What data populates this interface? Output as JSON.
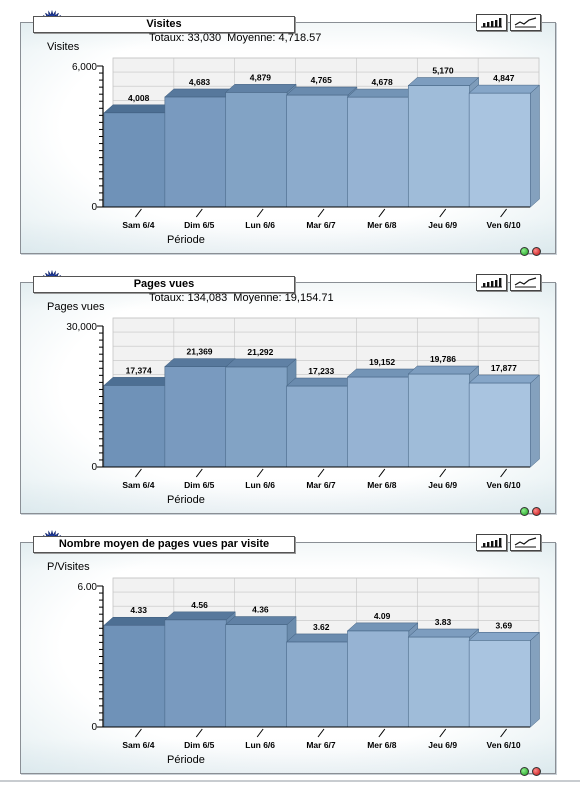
{
  "charts": [
    {
      "title": "Visites",
      "totals_label": "Totaux: 33,030",
      "average_label": "Moyenne: 4,718.57",
      "xlabel": "Période"
    },
    {
      "title": "Pages vues",
      "totals_label": "Totaux: 134,083",
      "average_label": "Moyenne: 19,154.71",
      "xlabel": "Période"
    },
    {
      "title": "Nombre moyen de pages vues par visite",
      "totals_label": "",
      "average_label": "",
      "xlabel": "Période"
    }
  ],
  "colors": {
    "bar_dark": "#6f92b8",
    "bar_light": "#a9c4e0",
    "bar_top_dark": "#4d6f93",
    "bar_top_light": "#86a6c8",
    "grid": "#c4c4c4"
  },
  "icons": [
    "burst-icon",
    "bar-chart-icon",
    "line-chart-icon",
    "green-status-icon",
    "red-status-icon"
  ],
  "chart_data": [
    {
      "type": "bar",
      "categories": [
        "Sam 6/4",
        "Dim 6/5",
        "Lun 6/6",
        "Mar 6/7",
        "Mer 6/8",
        "Jeu 6/9",
        "Ven 6/10"
      ],
      "values": [
        4008,
        4683,
        4879,
        4765,
        4678,
        5170,
        4847
      ],
      "value_labels": [
        "4,008",
        "4,683",
        "4,879",
        "4,765",
        "4,678",
        "5,170",
        "4,847"
      ],
      "title": "Visites",
      "xlabel": "Période",
      "ylabel": "Visites",
      "ylim": [
        0,
        6000
      ],
      "y_tick_labels": [
        "0",
        "6,000"
      ],
      "grid": true
    },
    {
      "type": "bar",
      "categories": [
        "Sam 6/4",
        "Dim 6/5",
        "Lun 6/6",
        "Mar 6/7",
        "Mer 6/8",
        "Jeu 6/9",
        "Ven 6/10"
      ],
      "values": [
        17374,
        21369,
        21292,
        17233,
        19152,
        19786,
        17877
      ],
      "value_labels": [
        "17,374",
        "21,369",
        "21,292",
        "17,233",
        "19,152",
        "19,786",
        "17,877"
      ],
      "title": "Pages vues",
      "xlabel": "Période",
      "ylabel": "Pages vues",
      "ylim": [
        0,
        30000
      ],
      "y_tick_labels": [
        "0",
        "30,000"
      ],
      "grid": true
    },
    {
      "type": "bar",
      "categories": [
        "Sam 6/4",
        "Dim 6/5",
        "Lun 6/6",
        "Mar 6/7",
        "Mer 6/8",
        "Jeu 6/9",
        "Ven 6/10"
      ],
      "values": [
        4.33,
        4.56,
        4.36,
        3.62,
        4.09,
        3.83,
        3.69
      ],
      "value_labels": [
        "4.33",
        "4.56",
        "4.36",
        "3.62",
        "4.09",
        "3.83",
        "3.69"
      ],
      "title": "Nombre moyen de pages vues par visite",
      "xlabel": "Période",
      "ylabel": "P/Visites",
      "ylim": [
        0,
        6
      ],
      "y_tick_labels": [
        "0",
        "6.00"
      ],
      "grid": true
    }
  ]
}
